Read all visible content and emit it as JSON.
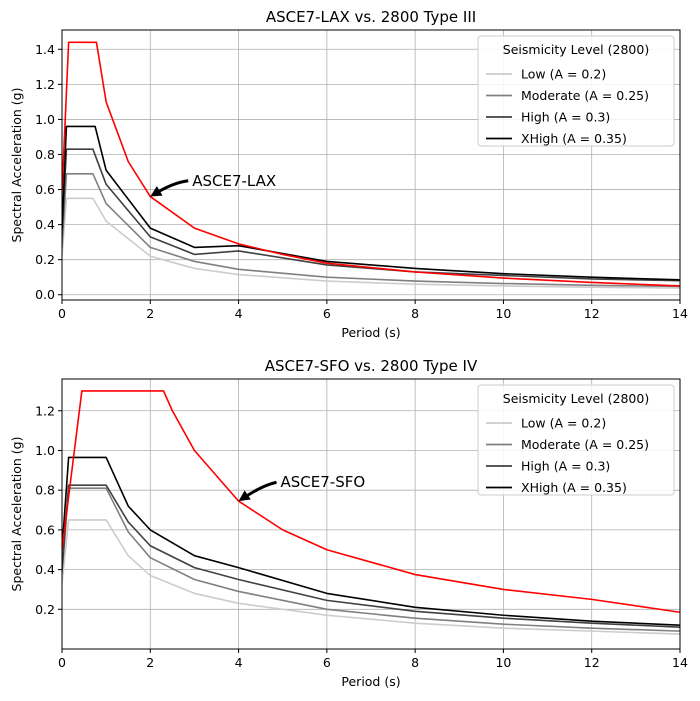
{
  "chart_data": [
    {
      "type": "line",
      "title": "ASCE7-LAX vs. 2800 Type III",
      "xlabel": "Period (s)",
      "ylabel": "Spectral Acceleration (g)",
      "xlim": [
        0,
        14
      ],
      "ylim": [
        -0.03,
        1.51
      ],
      "xticks": [
        0,
        2,
        4,
        6,
        8,
        10,
        12,
        14
      ],
      "yticks": [
        0.0,
        0.2,
        0.4,
        0.6,
        0.8,
        1.0,
        1.2,
        1.4
      ],
      "ytick_labels": [
        "0.0",
        "0.2",
        "0.4",
        "0.6",
        "0.8",
        "1.0",
        "1.2",
        "1.4"
      ],
      "grid": true,
      "legend": {
        "title": "Seismicity Level (2800)",
        "placement": "top-right",
        "entries": [
          "Low (A = 0.2)",
          "Moderate (A = 0.25)",
          "High (A = 0.3)",
          "XHigh  (A = 0.35)"
        ]
      },
      "annotation": {
        "text": "ASCE7-LAX",
        "point": [
          2.0,
          0.56
        ],
        "text_at": [
          2.95,
          0.65
        ]
      },
      "series": [
        {
          "name": "Low (A = 0.2)",
          "color": "#cccccc",
          "x": [
            0,
            0.1,
            0.7,
            1.0,
            2.0,
            3.0,
            4.0,
            6.0,
            8.0,
            10.0,
            12.0,
            14.0
          ],
          "y": [
            0.22,
            0.55,
            0.55,
            0.42,
            0.22,
            0.15,
            0.115,
            0.078,
            0.06,
            0.05,
            0.043,
            0.038
          ]
        },
        {
          "name": "Moderate (A = 0.25)",
          "color": "#808080",
          "x": [
            0,
            0.1,
            0.7,
            1.0,
            2.0,
            3.0,
            4.0,
            6.0,
            8.0,
            10.0,
            12.0,
            14.0
          ],
          "y": [
            0.27,
            0.69,
            0.69,
            0.52,
            0.27,
            0.19,
            0.145,
            0.1,
            0.078,
            0.064,
            0.054,
            0.047
          ]
        },
        {
          "name": "High (A = 0.3)",
          "color": "#404040",
          "x": [
            0,
            0.1,
            0.7,
            1.0,
            2.0,
            3.0,
            4.0,
            6.0,
            8.0,
            10.0,
            12.0,
            14.0
          ],
          "y": [
            0.33,
            0.83,
            0.83,
            0.63,
            0.33,
            0.23,
            0.25,
            0.17,
            0.13,
            0.11,
            0.09,
            0.08
          ]
        },
        {
          "name": "XHigh  (A = 0.35)",
          "color": "#000000",
          "x": [
            0,
            0.1,
            0.75,
            1.0,
            2.0,
            3.0,
            4.0,
            6.0,
            8.0,
            10.0,
            12.0,
            14.0
          ],
          "y": [
            0.38,
            0.96,
            0.96,
            0.71,
            0.38,
            0.27,
            0.28,
            0.19,
            0.15,
            0.12,
            0.1,
            0.085
          ]
        },
        {
          "name": "",
          "color": "#ff0000",
          "x": [
            0,
            0.15,
            0.78,
            1.0,
            1.5,
            2.0,
            3.0,
            4.0,
            5.0,
            6.0,
            8.0,
            10.0,
            12.0,
            14.0
          ],
          "y": [
            0.58,
            1.44,
            1.44,
            1.1,
            0.76,
            0.56,
            0.38,
            0.29,
            0.23,
            0.18,
            0.13,
            0.095,
            0.07,
            0.05
          ]
        }
      ]
    },
    {
      "type": "line",
      "title": "ASCE7-SFO vs. 2800 Type IV",
      "xlabel": "Period (s)",
      "ylabel": "Spectral Acceleration (g)",
      "xlim": [
        0,
        14
      ],
      "ylim": [
        0.0,
        1.36
      ],
      "xticks": [
        0,
        2,
        4,
        6,
        8,
        10,
        12,
        14
      ],
      "yticks": [
        0.2,
        0.4,
        0.6,
        0.8,
        1.0,
        1.2
      ],
      "ytick_labels": [
        "0.2",
        "0.4",
        "0.6",
        "0.8",
        "1.0",
        "1.2"
      ],
      "grid": true,
      "legend": {
        "title": "Seismicity Level (2800)",
        "placement": "top-right",
        "entries": [
          "Low (A = 0.2)",
          "Moderate (A = 0.25)",
          "High (A = 0.3)",
          "XHigh  (A = 0.35)"
        ]
      },
      "annotation": {
        "text": "ASCE7-SFO",
        "point": [
          4.0,
          0.745
        ],
        "text_at": [
          4.95,
          0.84
        ]
      },
      "series": [
        {
          "name": "Low (A = 0.2)",
          "color": "#cccccc",
          "x": [
            0,
            0.15,
            1.0,
            1.5,
            2.0,
            3.0,
            4.0,
            6.0,
            8.0,
            10.0,
            12.0,
            14.0
          ],
          "y": [
            0.33,
            0.65,
            0.65,
            0.47,
            0.37,
            0.28,
            0.23,
            0.17,
            0.13,
            0.105,
            0.09,
            0.075
          ]
        },
        {
          "name": "Moderate (A = 0.25)",
          "color": "#808080",
          "x": [
            0,
            0.15,
            1.0,
            1.5,
            2.0,
            3.0,
            4.0,
            6.0,
            8.0,
            10.0,
            12.0,
            14.0
          ],
          "y": [
            0.38,
            0.81,
            0.81,
            0.59,
            0.46,
            0.35,
            0.29,
            0.2,
            0.155,
            0.125,
            0.105,
            0.09
          ]
        },
        {
          "name": "High (A = 0.3)",
          "color": "#404040",
          "x": [
            0,
            0.15,
            1.0,
            1.5,
            2.0,
            3.0,
            4.0,
            6.0,
            8.0,
            10.0,
            12.0,
            14.0
          ],
          "y": [
            0.4,
            0.825,
            0.825,
            0.64,
            0.52,
            0.41,
            0.35,
            0.245,
            0.19,
            0.155,
            0.13,
            0.11
          ]
        },
        {
          "name": "XHigh  (A = 0.35)",
          "color": "#000000",
          "x": [
            0,
            0.15,
            1.0,
            1.5,
            2.0,
            3.0,
            4.0,
            6.0,
            8.0,
            10.0,
            12.0,
            14.0
          ],
          "y": [
            0.5,
            0.965,
            0.965,
            0.72,
            0.6,
            0.47,
            0.41,
            0.28,
            0.21,
            0.17,
            0.14,
            0.12
          ]
        },
        {
          "name": "",
          "color": "#ff0000",
          "x": [
            0,
            0.45,
            2.3,
            2.5,
            3.0,
            4.0,
            5.0,
            6.0,
            8.0,
            10.0,
            12.0,
            14.0
          ],
          "y": [
            0.5,
            1.3,
            1.3,
            1.2,
            1.0,
            0.745,
            0.6,
            0.5,
            0.375,
            0.3,
            0.25,
            0.185
          ]
        }
      ]
    }
  ]
}
